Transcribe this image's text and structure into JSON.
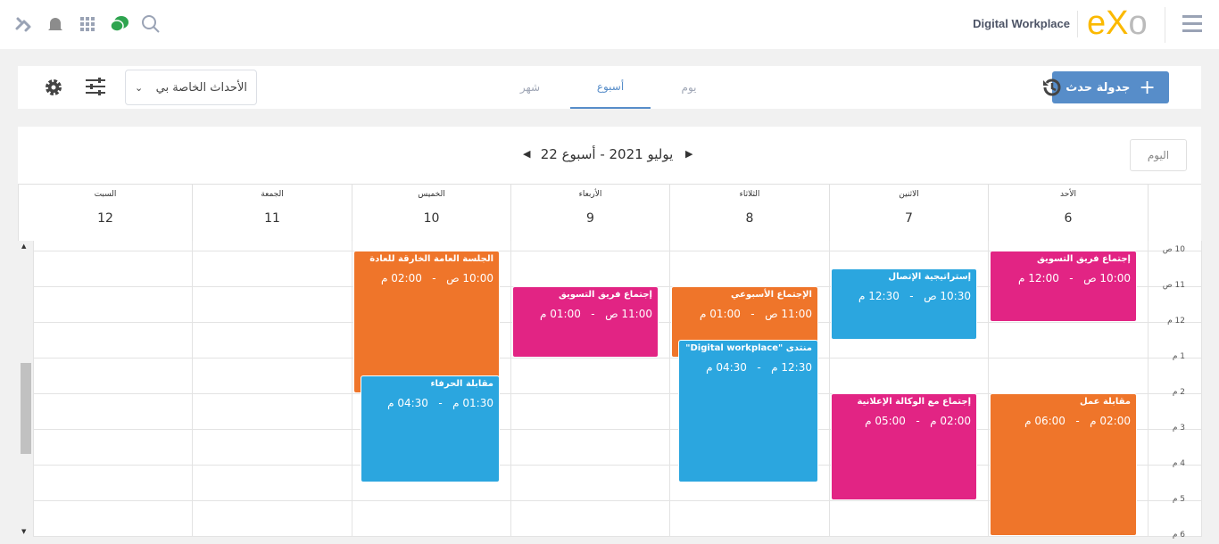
{
  "topbar": {
    "brand": "Digital Workplace",
    "logo": "eXo",
    "icons": [
      "tools-icon",
      "bell-icon",
      "apps-grid-icon",
      "chat-icon",
      "search-icon",
      "hamburger-menu-icon"
    ],
    "chat_color": "#2ea44f"
  },
  "toolbar": {
    "add_event": "جدولة حدث",
    "tabs": [
      {
        "label": "يوم"
      },
      {
        "label": "أسبوع",
        "active": true
      },
      {
        "label": "شهر"
      }
    ],
    "filter": "الأحداث الخاصة بي",
    "accent": "#578dc9"
  },
  "calendar": {
    "today": "اليوم",
    "period": "يوليو 2021 - أسبوع 22",
    "days": [
      {
        "name": "الأحد",
        "num": "6"
      },
      {
        "name": "الاثنين",
        "num": "7"
      },
      {
        "name": "الثلاثاء",
        "num": "8"
      },
      {
        "name": "الأربعاء",
        "num": "9"
      },
      {
        "name": "الخميس",
        "num": "10"
      },
      {
        "name": "الجمعة",
        "num": "11"
      },
      {
        "name": "السبت",
        "num": "12"
      }
    ],
    "hours": [
      "10 ص",
      "11 ص",
      "12 م",
      "1 م",
      "2 م",
      "3 م",
      "4 م",
      "5 م",
      "6 م"
    ],
    "events": [
      {
        "day": 0,
        "title": "إجتماع فريق التسويق",
        "start": "10:00 ص",
        "end": "12:00 م",
        "color": "#e22484"
      },
      {
        "day": 0,
        "title": "مقابلة عمل",
        "start": "02:00 م",
        "end": "06:00 م",
        "color": "#ef752a"
      },
      {
        "day": 1,
        "title": "إستراتيجية الإتصال",
        "start": "10:30 ص",
        "end": "12:30 م",
        "color": "#2ba6df"
      },
      {
        "day": 1,
        "title": "إجتماع مع الوكالة الإعلانية",
        "start": "02:00 م",
        "end": "05:00 م",
        "color": "#e22484"
      },
      {
        "day": 2,
        "title": "الإجتماع الأسبوعي",
        "start": "11:00 ص",
        "end": "01:00 م",
        "color": "#ef752a"
      },
      {
        "day": 2,
        "title": "منتدى \"Digital workplace\"",
        "start": "12:30 م",
        "end": "04:30 م",
        "color": "#2ba6df",
        "indent": true
      },
      {
        "day": 3,
        "title": "إجتماع فريق التسويق",
        "start": "11:00 ص",
        "end": "01:00 م",
        "color": "#e22484"
      },
      {
        "day": 4,
        "title": "الجلسة العامة الخارقة للعادة",
        "start": "10:00 ص",
        "end": "02:00 م",
        "color": "#ef752a"
      },
      {
        "day": 4,
        "title": "مقابلة الحرفاء",
        "start": "01:30 م",
        "end": "04:30 م",
        "color": "#2ba6df",
        "indent": true
      }
    ]
  }
}
